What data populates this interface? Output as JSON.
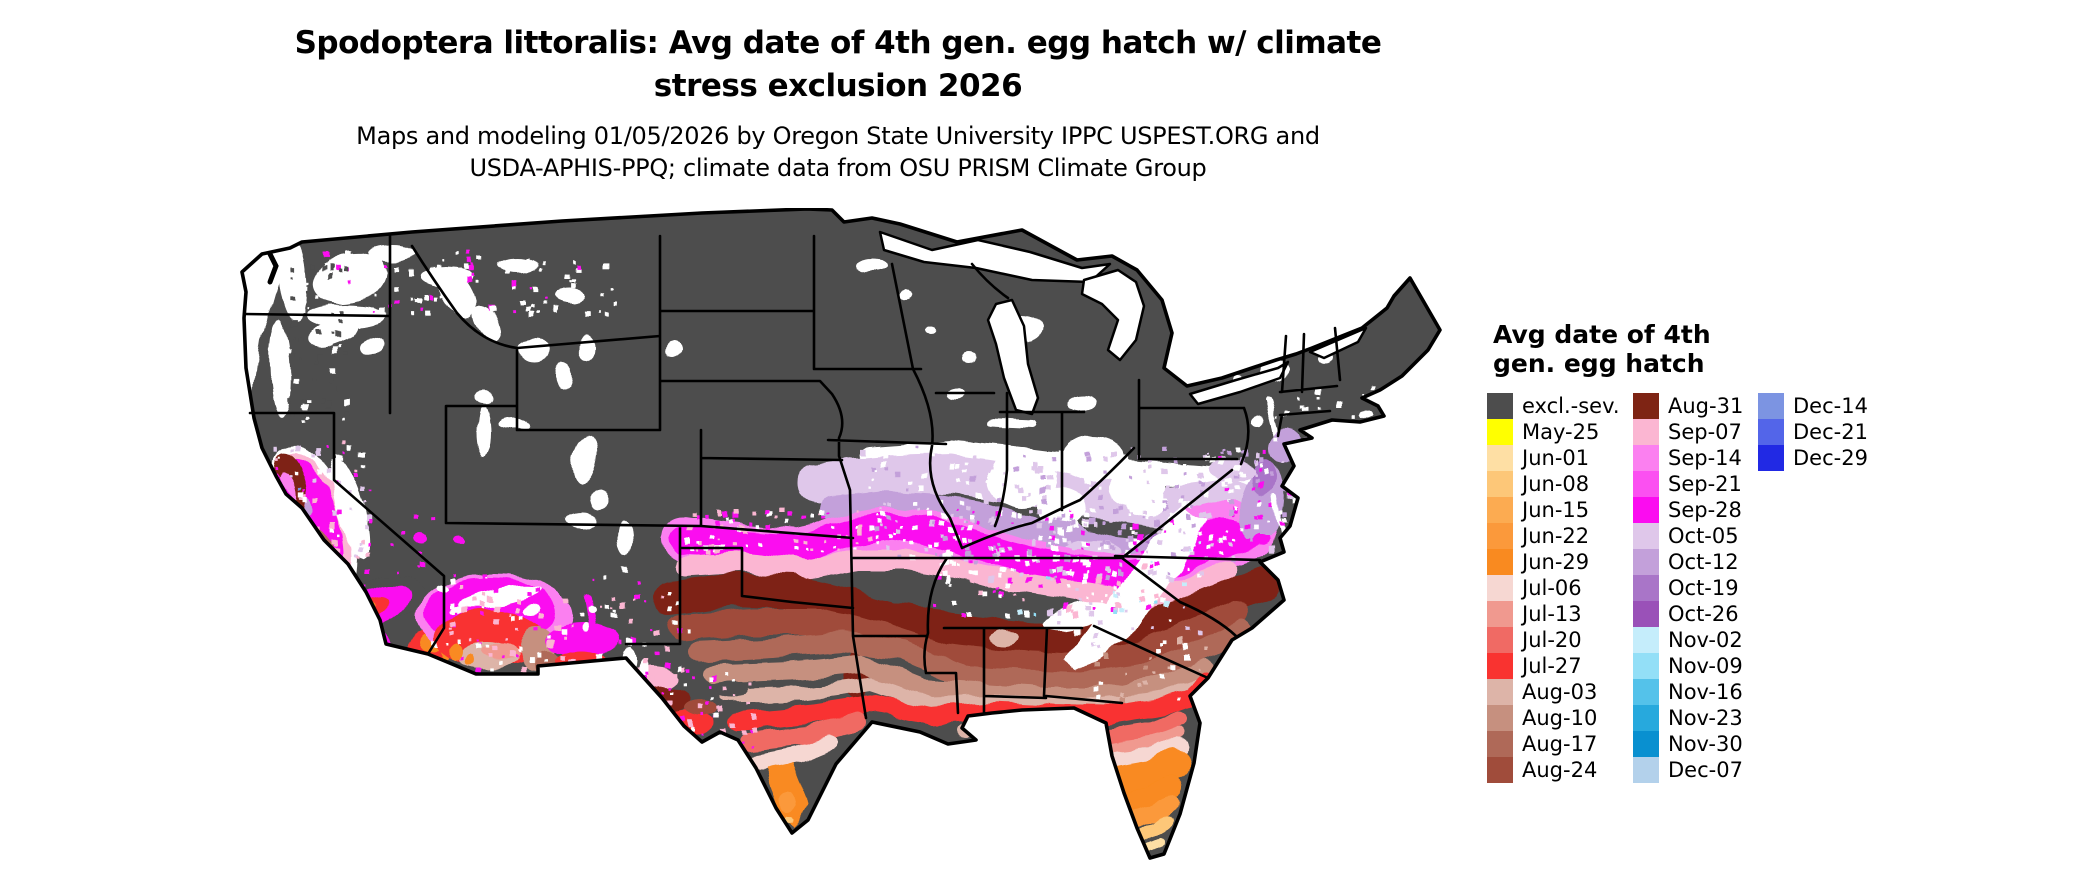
{
  "title": {
    "line1": "Spodoptera littoralis: Avg date of 4th gen. egg hatch w/ climate",
    "line2": "stress exclusion 2026"
  },
  "subtitle": {
    "line1": "Maps and modeling 01/05/2026 by Oregon State University IPPC USPEST.ORG and",
    "line2": "USDA-APHIS-PPQ; climate data from OSU PRISM Climate Group"
  },
  "legend": {
    "title_line1": "Avg date of 4th",
    "title_line2": "gen. egg hatch",
    "entries": [
      {
        "label": "excl.-sev.",
        "color": "#4D4D4D"
      },
      {
        "label": "May-25",
        "color": "#FFFF00"
      },
      {
        "label": "Jun-01",
        "color": "#FEDFA4"
      },
      {
        "label": "Jun-08",
        "color": "#FDC778"
      },
      {
        "label": "Jun-15",
        "color": "#FCAB51"
      },
      {
        "label": "Jun-22",
        "color": "#FB993B"
      },
      {
        "label": "Jun-29",
        "color": "#F98A20"
      },
      {
        "label": "Jul-06",
        "color": "#F6D7D2"
      },
      {
        "label": "Jul-13",
        "color": "#F0998F"
      },
      {
        "label": "Jul-20",
        "color": "#F06A64"
      },
      {
        "label": "Jul-27",
        "color": "#F93330"
      },
      {
        "label": "Aug-03",
        "color": "#DDB4A8"
      },
      {
        "label": "Aug-10",
        "color": "#C6907F"
      },
      {
        "label": "Aug-17",
        "color": "#AF6958"
      },
      {
        "label": "Aug-24",
        "color": "#A04C3B"
      },
      {
        "label": "Aug-31",
        "color": "#7E2414"
      },
      {
        "label": "Sep-07",
        "color": "#FBB6D2"
      },
      {
        "label": "Sep-14",
        "color": "#FB80F0"
      },
      {
        "label": "Sep-21",
        "color": "#FB50F1"
      },
      {
        "label": "Sep-28",
        "color": "#FB0CF0"
      },
      {
        "label": "Oct-05",
        "color": "#DFC7EA"
      },
      {
        "label": "Oct-12",
        "color": "#C3A0DA"
      },
      {
        "label": "Oct-19",
        "color": "#A975C8"
      },
      {
        "label": "Oct-26",
        "color": "#9A51B8"
      },
      {
        "label": "Nov-02",
        "color": "#C5EDFB"
      },
      {
        "label": "Nov-09",
        "color": "#93DFF7"
      },
      {
        "label": "Nov-16",
        "color": "#54C2EA"
      },
      {
        "label": "Nov-23",
        "color": "#27A9DD"
      },
      {
        "label": "Nov-30",
        "color": "#0990D0"
      },
      {
        "label": "Dec-07",
        "color": "#B3D1EB"
      },
      {
        "label": "Dec-14",
        "color": "#7C94E2"
      },
      {
        "label": "Dec-21",
        "color": "#5365E9"
      },
      {
        "label": "Dec-29",
        "color": "#2129E4"
      }
    ]
  },
  "map": {
    "region": "Contiguous United States",
    "land_color": "#4D4D4D",
    "no_data_color": "#FFFFFF",
    "border_color": "#000000",
    "background_color": "#FFFFFF"
  }
}
